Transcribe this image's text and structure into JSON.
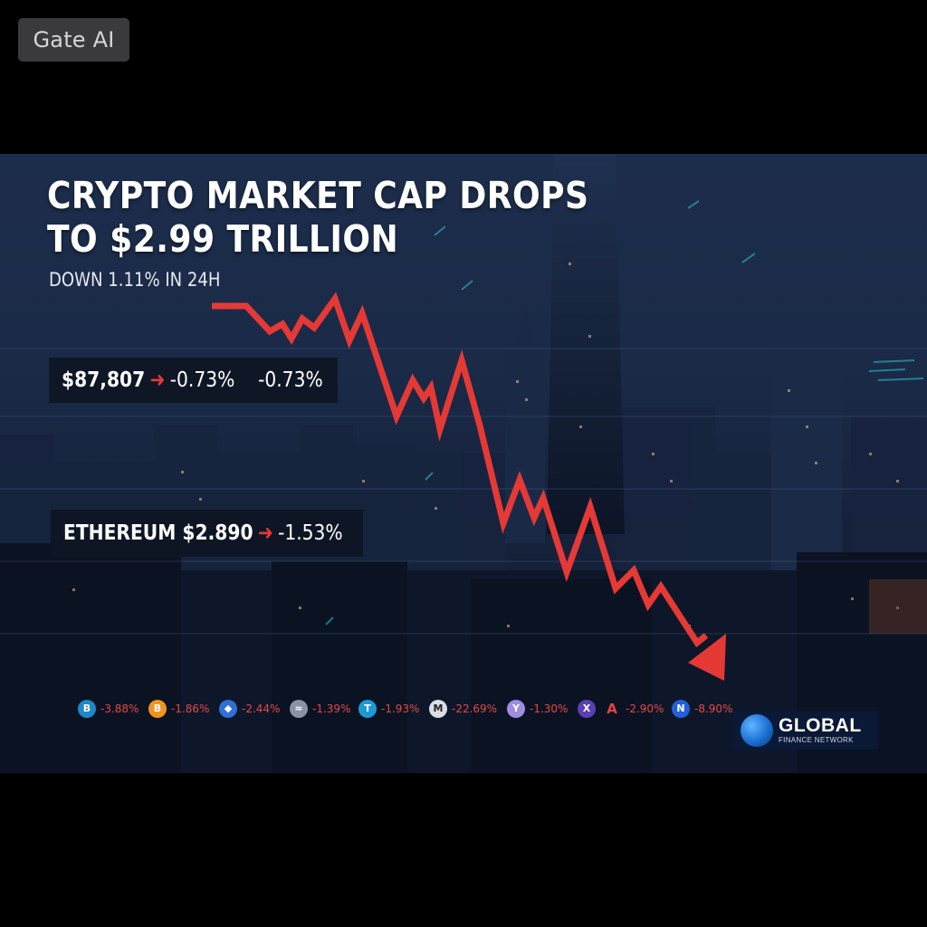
{
  "badge": {
    "label": "Gate AI"
  },
  "headline": {
    "line1": "CRYPTO MARKET CAP DROPS",
    "line2": "TO $2.99 TRILLION"
  },
  "subheadline": "DOWN 1.11% IN 24H",
  "bitcoin_box": {
    "price": "$87,807",
    "change1": "-0.73%",
    "change2": "-0.73%"
  },
  "ethereum_box": {
    "label": "ETHEREUM $2.890",
    "change": "-1.53%"
  },
  "ticker": [
    {
      "icon": "bitcoin-icon",
      "glyph": "B",
      "color": "#1e88c9",
      "change": "-3.88%"
    },
    {
      "icon": "bitcoin-orange-icon",
      "glyph": "B",
      "color": "#f0941f",
      "change": "-1.86%"
    },
    {
      "icon": "ethereum-icon",
      "glyph": "◆",
      "color": "#2f6fd6",
      "change": "-2.44%"
    },
    {
      "icon": "token-grey-icon",
      "glyph": "≈",
      "color": "#8a93a3",
      "change": "-1.39%"
    },
    {
      "icon": "tether-icon",
      "glyph": "T",
      "color": "#1c9ad6",
      "change": "-1.93%"
    },
    {
      "icon": "token-white-icon",
      "glyph": "M",
      "color": "#d9dde5",
      "change": "-22.69%"
    },
    {
      "icon": "token-purple-icon",
      "glyph": "Y",
      "color": "#a08ce0",
      "change": "-1.30%"
    },
    {
      "icon": "token-violet-icon",
      "glyph": "X",
      "color": "#5b3fb5",
      "change": ""
    },
    {
      "icon": "avalanche-icon",
      "glyph": "A",
      "color": "#e84142",
      "change": "-2.90%"
    },
    {
      "icon": "token-blue-icon",
      "glyph": "N",
      "color": "#2360d8",
      "change": "-8.90%"
    }
  ],
  "logo": {
    "line1": "GLOBAL",
    "line2": "FINANCE NETWORK"
  },
  "colors": {
    "accent_red": "#e53935",
    "background": "#000000",
    "scene_blue": "#1a2a47"
  }
}
